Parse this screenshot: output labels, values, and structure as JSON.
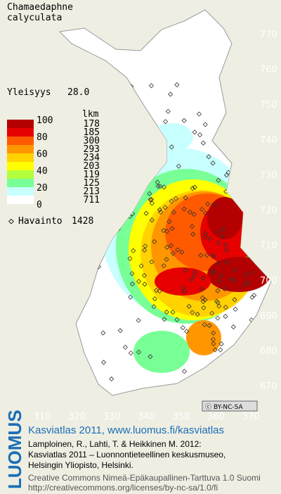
{
  "title": [
    "Chamaedaphne",
    "calyculata"
  ],
  "frequency": {
    "label": "Yleisyys",
    "value": "28.0"
  },
  "legend": {
    "count_header": "lkm",
    "scale_labels": [
      100,
      80,
      60,
      40,
      20,
      0
    ],
    "classes": [
      {
        "color": "#b40000",
        "count": 178
      },
      {
        "color": "#e60000",
        "count": 185
      },
      {
        "color": "#ff5a00",
        "count": 300
      },
      {
        "color": "#ff9600",
        "count": 293
      },
      {
        "color": "#ffd200",
        "count": 234
      },
      {
        "color": "#ffff00",
        "count": 203
      },
      {
        "color": "#b4ff3c",
        "count": 119
      },
      {
        "color": "#78ff96",
        "count": 125
      },
      {
        "color": "#c8ffff",
        "count": 213
      },
      {
        "color": "#ffffff",
        "count": 711
      }
    ]
  },
  "observations": {
    "label": "Havainto",
    "count": 1428
  },
  "axes": {
    "y_ticks": [
      770,
      760,
      750,
      740,
      730,
      720,
      710,
      700,
      690,
      680,
      670
    ],
    "x_ticks": [
      310,
      320,
      330,
      340,
      350,
      360,
      370
    ]
  },
  "license_badge": "BY-NC-SA",
  "publisher": "LUOMUS",
  "footer": {
    "heading": "Kasviatlas 2011, www.luomus.fi/kasviatlas",
    "citation": [
      "Lamploinen, R., Lahti, T. & Heikkinen M. 2012:",
      "Kasviatlas 2011 – Luonnontieteellinen keskusmuseo,",
      "Helsingin Yliopisto, Helsinki."
    ],
    "license": [
      "Creative Commons Nimeä-Epäkaupallinen-Tarttuva 1.0 Suomi",
      "http://creativecommons.org/licenses/by-nc-sa/1.0/fi"
    ]
  }
}
